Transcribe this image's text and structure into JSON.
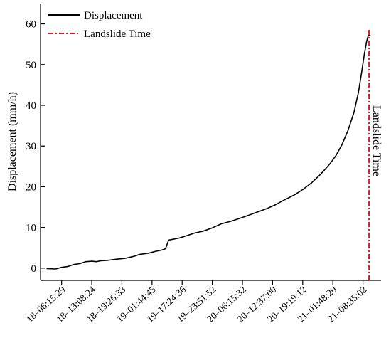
{
  "chart_data": {
    "type": "line",
    "ylabel": "Displacement (mm/h)",
    "ylim": [
      -3,
      65
    ],
    "yticks": [
      0,
      10,
      20,
      30,
      40,
      50,
      60
    ],
    "xticks": [
      "18–06:15:29",
      "18–13:08:24",
      "18–19:26:33",
      "19–01:44:45",
      "19–17:24:36",
      "19–23:51:52",
      "20–06:15:32",
      "20–12:37:00",
      "20–19:19:12",
      "21–01:48:20",
      "21–08:35:02"
    ],
    "xlim": [
      -0.7,
      10.6
    ],
    "series": [
      {
        "name": "Displacement",
        "color": "#000000",
        "points": [
          [
            -0.5,
            -0.1
          ],
          [
            -0.2,
            -0.2
          ],
          [
            0.0,
            0.2
          ],
          [
            0.2,
            0.4
          ],
          [
            0.4,
            0.9
          ],
          [
            0.6,
            1.1
          ],
          [
            0.8,
            1.6
          ],
          [
            1.0,
            1.7
          ],
          [
            1.15,
            1.6
          ],
          [
            1.3,
            1.8
          ],
          [
            1.5,
            1.9
          ],
          [
            1.8,
            2.2
          ],
          [
            2.1,
            2.4
          ],
          [
            2.4,
            2.9
          ],
          [
            2.6,
            3.4
          ],
          [
            2.9,
            3.7
          ],
          [
            3.1,
            4.1
          ],
          [
            3.35,
            4.5
          ],
          [
            3.45,
            4.8
          ],
          [
            3.55,
            6.9
          ],
          [
            3.7,
            7.1
          ],
          [
            3.9,
            7.4
          ],
          [
            4.2,
            8.1
          ],
          [
            4.4,
            8.6
          ],
          [
            4.7,
            9.1
          ],
          [
            5.0,
            9.9
          ],
          [
            5.3,
            10.9
          ],
          [
            5.6,
            11.5
          ],
          [
            5.9,
            12.2
          ],
          [
            6.2,
            13.0
          ],
          [
            6.5,
            13.8
          ],
          [
            6.8,
            14.6
          ],
          [
            7.1,
            15.6
          ],
          [
            7.4,
            16.8
          ],
          [
            7.7,
            17.9
          ],
          [
            8.0,
            19.3
          ],
          [
            8.3,
            21.0
          ],
          [
            8.6,
            23.1
          ],
          [
            8.9,
            25.6
          ],
          [
            9.1,
            27.6
          ],
          [
            9.3,
            30.3
          ],
          [
            9.5,
            33.8
          ],
          [
            9.7,
            38.2
          ],
          [
            9.85,
            43.2
          ],
          [
            9.95,
            47.8
          ],
          [
            10.05,
            52.8
          ],
          [
            10.12,
            55.7
          ],
          [
            10.18,
            57.3
          ],
          [
            10.25,
            57.1
          ]
        ]
      }
    ],
    "markers": [
      {
        "name": "Landslide Time",
        "x": 10.2,
        "color": "#e41a1c",
        "style": "dash-dot"
      }
    ],
    "annotations": [
      {
        "text": "Landslide Time"
      }
    ],
    "legend": {
      "position": "top-left",
      "entries": [
        "Displacement",
        "Landslide Time"
      ]
    }
  }
}
